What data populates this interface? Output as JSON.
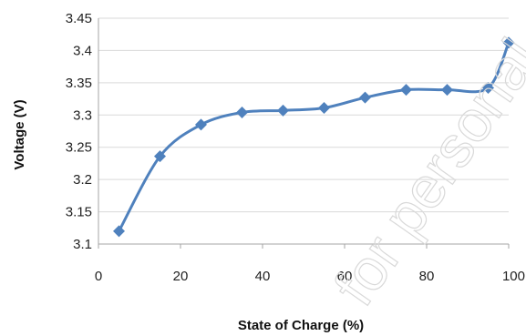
{
  "chart_data": {
    "type": "line",
    "title": "",
    "xlabel": "State of Charge (%)",
    "ylabel": "Voltage (V)",
    "xlim": [
      0,
      100
    ],
    "ylim": [
      3.1,
      3.45
    ],
    "x_ticks": [
      "0",
      "20",
      "40",
      "60",
      "80",
      "100"
    ],
    "y_ticks": [
      "3.1",
      "3.15",
      "3.2",
      "3.25",
      "3.3",
      "3.35",
      "3.4",
      "3.45"
    ],
    "grid": "horizontal",
    "legend": "none",
    "series": [
      {
        "color": "#4F81BD",
        "marker": "diamond",
        "smooth": true,
        "x": [
          5,
          15,
          25,
          35,
          45,
          55,
          65,
          75,
          85,
          95,
          100
        ],
        "y": [
          3.12,
          3.236,
          3.285,
          3.304,
          3.307,
          3.311,
          3.327,
          3.339,
          3.339,
          3.342,
          3.412
        ]
      }
    ]
  },
  "watermark_text": "for personal"
}
